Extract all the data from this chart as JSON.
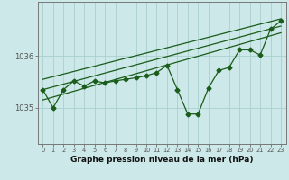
{
  "xlabel": "Graphe pression niveau de la mer (hPa)",
  "bg_color": "#cce8e8",
  "line_color": "#1a5c1a",
  "grid_color": "#aacfcf",
  "yticks": [
    1035,
    1036
  ],
  "ylim": [
    1034.3,
    1037.05
  ],
  "xlim": [
    -0.5,
    23.5
  ],
  "xticks": [
    0,
    1,
    2,
    3,
    4,
    5,
    6,
    7,
    8,
    9,
    10,
    11,
    12,
    13,
    14,
    15,
    16,
    17,
    18,
    19,
    20,
    21,
    22,
    23
  ],
  "x": [
    0,
    1,
    2,
    3,
    4,
    5,
    6,
    7,
    8,
    9,
    10,
    11,
    12,
    13,
    14,
    15,
    16,
    17,
    18,
    19,
    20,
    21,
    22,
    23
  ],
  "pressure": [
    1035.35,
    1035.0,
    1035.35,
    1035.52,
    1035.42,
    1035.52,
    1035.48,
    1035.52,
    1035.55,
    1035.58,
    1035.62,
    1035.68,
    1035.82,
    1035.35,
    1034.88,
    1034.88,
    1035.38,
    1035.72,
    1035.78,
    1036.12,
    1036.12,
    1036.02,
    1036.52,
    1036.68
  ],
  "trend1": [
    1035.15,
    1036.45
  ],
  "trend2": [
    1035.35,
    1036.58
  ],
  "trend3": [
    1035.55,
    1036.72
  ],
  "marker_size": 2.5,
  "line_width": 1.0,
  "xlabel_fontsize": 6.5,
  "ytick_fontsize": 6.0,
  "xtick_fontsize": 4.8
}
